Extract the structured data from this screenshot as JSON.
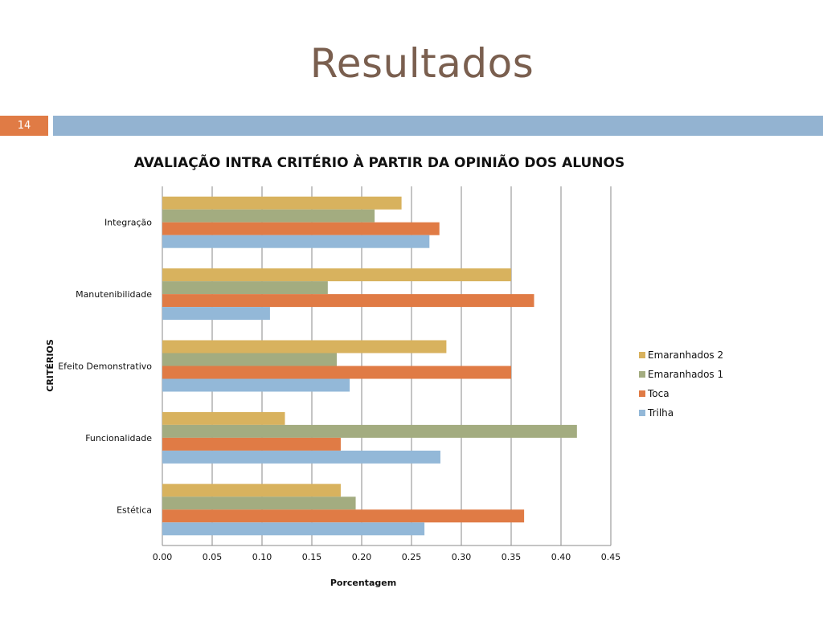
{
  "slide": {
    "title": "Resultados",
    "number": "14"
  },
  "colors": {
    "title": "#7a5f4f",
    "number_box": "#e07b45",
    "header_band": "#93b3d1",
    "gridline": "#888888"
  },
  "chart_data": {
    "type": "bar",
    "orientation": "horizontal",
    "title": "AVALIAÇÃO INTRA CRITÉRIO À PARTIR DA OPINIÃO DOS ALUNOS",
    "xlabel": "Porcentagem",
    "ylabel": "CRITÉRIOS",
    "xlim": [
      0,
      0.45
    ],
    "xticks": [
      "0.00",
      "0.05",
      "0.10",
      "0.15",
      "0.20",
      "0.25",
      "0.30",
      "0.35",
      "0.40",
      "0.45"
    ],
    "grid": "vertical",
    "legend_position": "right",
    "categories": [
      "Integração",
      "Manutenibilidade",
      "Efeito Demonstrativo",
      "Funcionalidade",
      "Estética"
    ],
    "series": [
      {
        "name": "Emaranhados 2",
        "color": "#d8b25e",
        "values": [
          0.24,
          0.35,
          0.285,
          0.123,
          0.179
        ]
      },
      {
        "name": "Emaranhados 1",
        "color": "#a3ac80",
        "values": [
          0.213,
          0.166,
          0.175,
          0.416,
          0.194
        ]
      },
      {
        "name": "Toca",
        "color": "#e07b45",
        "values": [
          0.278,
          0.373,
          0.35,
          0.179,
          0.363
        ]
      },
      {
        "name": "Trilha",
        "color": "#93b8d8",
        "values": [
          0.268,
          0.108,
          0.188,
          0.279,
          0.263
        ]
      }
    ]
  }
}
